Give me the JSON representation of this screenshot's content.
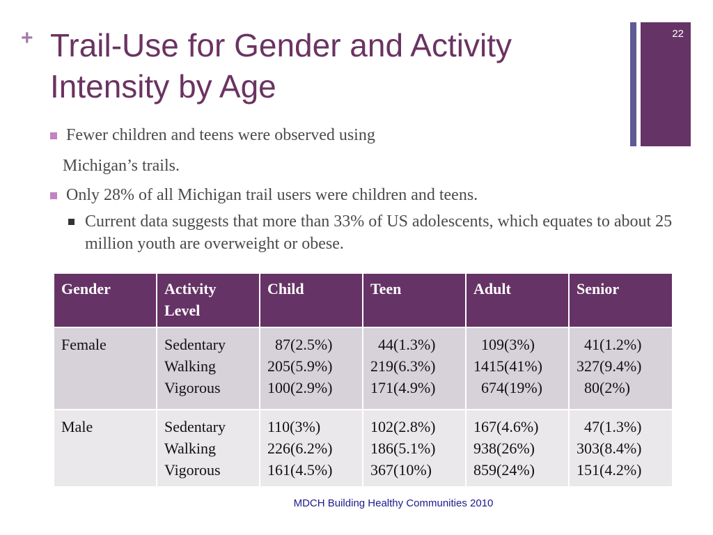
{
  "slide": {
    "title": "Trail-Use for Gender and Activity Intensity by Age",
    "number": "22",
    "source": "MDCH Building Healthy Communities 2010"
  },
  "bullets": {
    "b1_text": "Fewer children and teens were observed using",
    "b1_cont": "Michigan’s trails.",
    "b2_text": "Only 28% of all Michigan trail users were children and teens.",
    "b3_text": "Current data suggests that more than 33% of US adolescents, which equates to about 25 million youth are overweight or obese."
  },
  "table": {
    "headers": [
      "Gender",
      "Activity Level",
      "Child",
      "Teen",
      "Adult",
      "Senior"
    ],
    "rows": [
      {
        "gender": "Female",
        "levels": [
          "Sedentary",
          "Walking",
          "Vigorous"
        ],
        "child": [
          "  87(2.5%)",
          "205(5.9%)",
          "100(2.9%)"
        ],
        "teen": [
          "  44(1.3%)",
          "219(6.3%)",
          "171(4.9%)"
        ],
        "adult": [
          "  109(3%)",
          "1415(41%)",
          "  674(19%)"
        ],
        "senior": [
          "  41(1.2%)",
          "327(9.4%)",
          "  80(2%)"
        ]
      },
      {
        "gender": "Male",
        "levels": [
          "Sedentary",
          "Walking",
          "Vigorous"
        ],
        "child": [
          "110(3%)",
          "226(6.2%)",
          "161(4.5%)"
        ],
        "teen": [
          "102(2.8%)",
          "186(5.1%)",
          "367(10%)"
        ],
        "adult": [
          "167(4.6%)",
          "938(26%)",
          "859(24%)"
        ],
        "senior": [
          "  47(1.3%)",
          "303(8.4%)",
          "151(4.2%)"
        ]
      }
    ]
  },
  "colors": {
    "title": "#6a3362",
    "header_bg": "#663366",
    "row_female_bg": "#d7d1da",
    "row_male_bg": "#ebe8ec",
    "accent_bar": "#5e5a93",
    "bullet_square": "#c084c0",
    "source_text": "#1a1a8c"
  }
}
